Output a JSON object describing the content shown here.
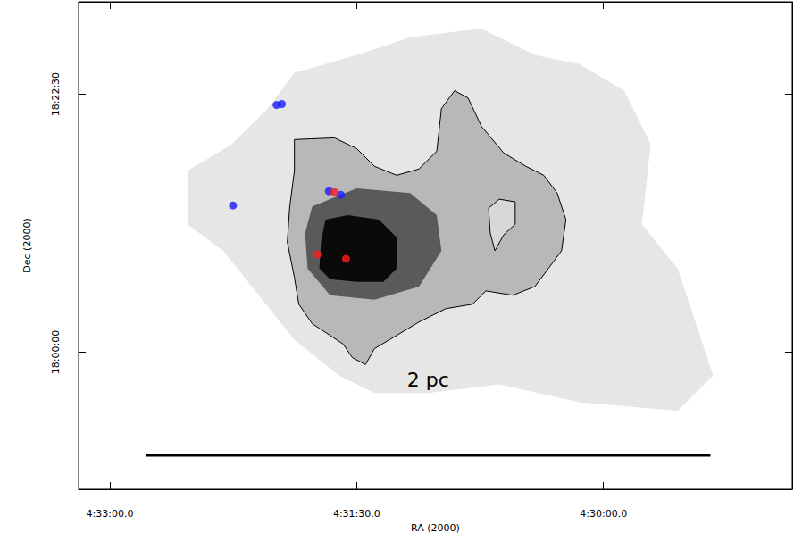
{
  "chart_data": {
    "type": "scatter",
    "xlabel": "RA (2000)",
    "ylabel": "Dec (2000)",
    "xlim": [
      16391.4,
      16131.2
    ],
    "ylim": [
      64083,
      66634
    ],
    "xticks": [
      {
        "value": 16380,
        "label": "4:33:00.0"
      },
      {
        "value": 16290,
        "label": "4:31:30.0"
      },
      {
        "value": 16200,
        "label": "4:30:00.0"
      }
    ],
    "yticks": [
      {
        "value": 64800,
        "label": "18:00:00"
      },
      {
        "value": 66150,
        "label": "18:22:30"
      }
    ],
    "grid": false,
    "image_layers": [
      {
        "color": "#e6e6e6",
        "polygon": [
          [
            16351.7,
            65750
          ],
          [
            16335.5,
            65889
          ],
          [
            16322.5,
            66075
          ],
          [
            16312.7,
            66262
          ],
          [
            16290.0,
            66355
          ],
          [
            16270.5,
            66448
          ],
          [
            16244.5,
            66494
          ],
          [
            16225.0,
            66355
          ],
          [
            16208.8,
            66308
          ],
          [
            16192.5,
            66169
          ],
          [
            16182.8,
            65889
          ],
          [
            16186.0,
            65470
          ],
          [
            16173.0,
            65238
          ],
          [
            16160.0,
            64679
          ],
          [
            16173.0,
            64493
          ],
          [
            16208.8,
            64539
          ],
          [
            16238.0,
            64632
          ],
          [
            16264.0,
            64586
          ],
          [
            16283.5,
            64586
          ],
          [
            16296.5,
            64679
          ],
          [
            16312.7,
            64865
          ],
          [
            16325.7,
            65098
          ],
          [
            16338.7,
            65331
          ],
          [
            16351.7,
            65470
          ]
        ]
      },
      {
        "color": "#b8b8b8",
        "polygon": [
          [
            16312.7,
            65913
          ],
          [
            16298.1,
            65922
          ],
          [
            16290.0,
            65866
          ],
          [
            16283.5,
            65773
          ],
          [
            16275.4,
            65726
          ],
          [
            16267.3,
            65759
          ],
          [
            16260.8,
            65852
          ],
          [
            16259.1,
            66075
          ],
          [
            16254.3,
            66169
          ],
          [
            16249.4,
            66131
          ],
          [
            16244.5,
            65982
          ],
          [
            16236.4,
            65843
          ],
          [
            16228.3,
            65773
          ],
          [
            16221.8,
            65726
          ],
          [
            16216.9,
            65633
          ],
          [
            16213.7,
            65494
          ],
          [
            16215.3,
            65331
          ],
          [
            16220.1,
            65238
          ],
          [
            16225.0,
            65144
          ],
          [
            16233.1,
            65098
          ],
          [
            16242.9,
            65121
          ],
          [
            16247.8,
            65051
          ],
          [
            16257.5,
            65028
          ],
          [
            16267.3,
            64958
          ],
          [
            16275.4,
            64888
          ],
          [
            16283.5,
            64819
          ],
          [
            16286.8,
            64735
          ],
          [
            16291.6,
            64772
          ],
          [
            16294.9,
            64842
          ],
          [
            16299.7,
            64888
          ],
          [
            16306.2,
            64949
          ],
          [
            16311.1,
            65051
          ],
          [
            16312.7,
            65191
          ],
          [
            16315.3,
            65377
          ],
          [
            16314.4,
            65563
          ],
          [
            16312.7,
            65750
          ]
        ]
      },
      {
        "color": "#d8d8d8",
        "polygon": [
          [
            16241.9,
            65554
          ],
          [
            16238.0,
            65601
          ],
          [
            16232.2,
            65587
          ],
          [
            16232.2,
            65470
          ],
          [
            16236.4,
            65414
          ],
          [
            16239.6,
            65331
          ],
          [
            16241.3,
            65424
          ]
        ]
      },
      {
        "color": "#5a5a5a",
        "polygon": [
          [
            16306.2,
            65563
          ],
          [
            16290.0,
            65657
          ],
          [
            16270.5,
            65633
          ],
          [
            16260.8,
            65517
          ],
          [
            16259.1,
            65331
          ],
          [
            16267.3,
            65144
          ],
          [
            16283.5,
            65075
          ],
          [
            16299.7,
            65098
          ],
          [
            16307.9,
            65238
          ],
          [
            16308.8,
            65424
          ]
        ]
      },
      {
        "color": "#0a0a0a",
        "polygon": [
          [
            16301.4,
            65494
          ],
          [
            16293.2,
            65517
          ],
          [
            16281.9,
            65494
          ],
          [
            16275.4,
            65400
          ],
          [
            16275.4,
            65238
          ],
          [
            16280.3,
            65168
          ],
          [
            16290.0,
            65168
          ],
          [
            16299.7,
            65182
          ],
          [
            16303.6,
            65238
          ],
          [
            16303.0,
            65377
          ]
        ]
      }
    ],
    "contours": [
      [
        [
          16312.7,
          65913
        ],
        [
          16298.1,
          65922
        ],
        [
          16290.0,
          65866
        ],
        [
          16283.5,
          65773
        ],
        [
          16275.4,
          65726
        ],
        [
          16267.3,
          65759
        ],
        [
          16260.8,
          65852
        ],
        [
          16259.1,
          66075
        ],
        [
          16254.3,
          66169
        ],
        [
          16249.4,
          66131
        ],
        [
          16244.5,
          65982
        ],
        [
          16236.4,
          65843
        ],
        [
          16228.3,
          65773
        ],
        [
          16221.8,
          65726
        ],
        [
          16216.9,
          65633
        ],
        [
          16213.7,
          65494
        ],
        [
          16215.3,
          65331
        ],
        [
          16220.1,
          65238
        ],
        [
          16225.0,
          65144
        ],
        [
          16233.1,
          65098
        ],
        [
          16242.9,
          65121
        ],
        [
          16247.8,
          65051
        ],
        [
          16257.5,
          65028
        ],
        [
          16267.3,
          64958
        ],
        [
          16275.4,
          64888
        ],
        [
          16283.5,
          64819
        ],
        [
          16286.8,
          64735
        ],
        [
          16291.6,
          64772
        ],
        [
          16294.9,
          64842
        ],
        [
          16299.7,
          64888
        ],
        [
          16306.2,
          64949
        ],
        [
          16311.1,
          65051
        ],
        [
          16312.7,
          65191
        ],
        [
          16315.3,
          65377
        ],
        [
          16314.4,
          65563
        ],
        [
          16312.7,
          65750
        ]
      ],
      [
        [
          16241.9,
          65554
        ],
        [
          16238.0,
          65601
        ],
        [
          16232.2,
          65587
        ],
        [
          16232.2,
          65470
        ],
        [
          16236.4,
          65414
        ],
        [
          16239.6,
          65331
        ],
        [
          16241.3,
          65424
        ]
      ]
    ],
    "series": [
      {
        "color": "#1a1aff",
        "marker": "circle",
        "x": [
          16319.2,
          16317.3,
          16335.1,
          16300.1,
          16295.8
        ],
        "y": [
          66094,
          66099,
          65568,
          65643,
          65624
        ]
      },
      {
        "color": "#ff1a1a",
        "marker": "circle",
        "x": [
          16298.1,
          16304.3,
          16293.9
        ],
        "y": [
          65638,
          65312,
          65289
        ]
      }
    ],
    "scale_bar": {
      "x": [
        16367,
        16161
      ],
      "y": 64260,
      "label": "2 pc",
      "label_x": 16264,
      "label_y": 64656
    }
  }
}
